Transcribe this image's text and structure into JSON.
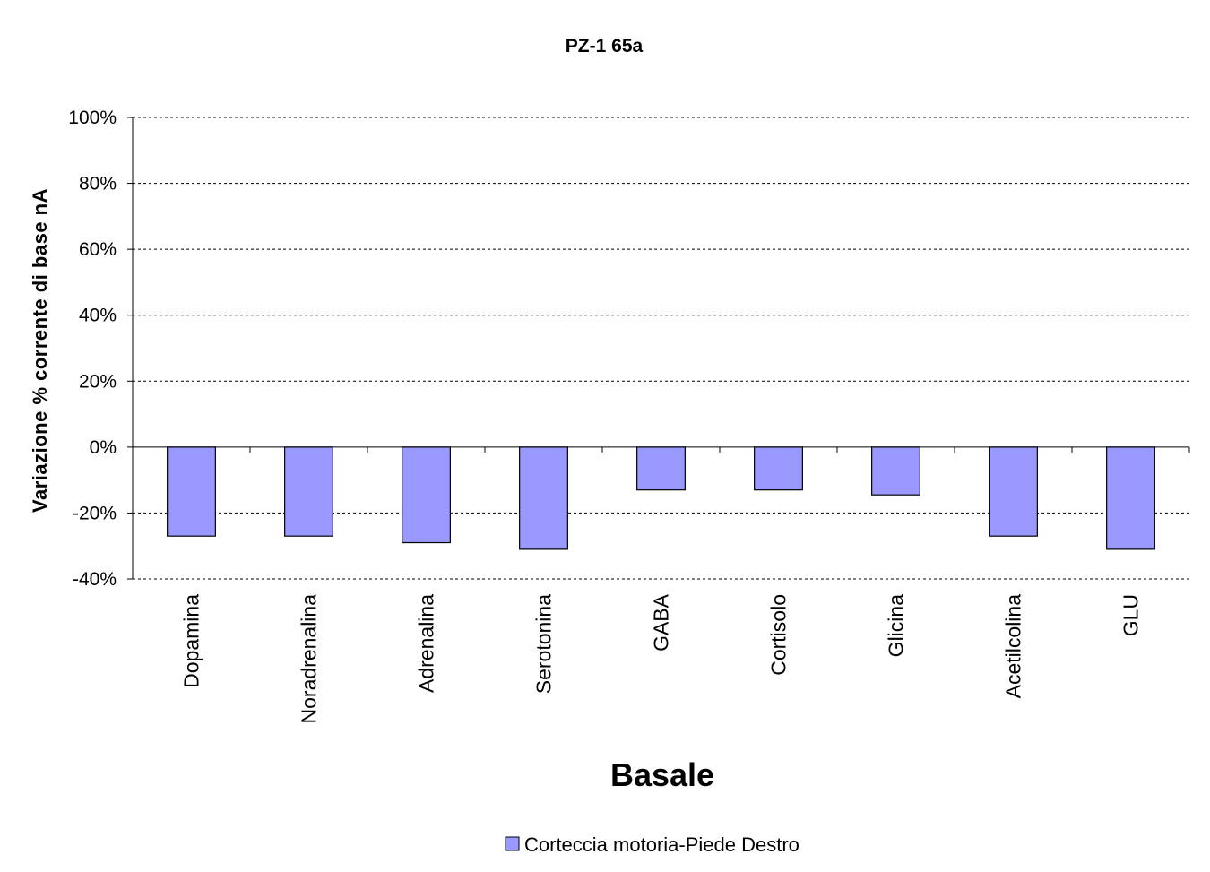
{
  "chart_data": {
    "type": "bar",
    "title": "PZ-1 65a",
    "xlabel": "Basale",
    "ylabel": "Variazione % corrente di base nA",
    "categories": [
      "Dopamina",
      "Noradrenalina",
      "Adrenalina",
      "Serotonina",
      "GABA",
      "Cortisolo",
      "Glicina",
      "Acetilcolina",
      "GLU"
    ],
    "series": [
      {
        "name": "Corteccia motoria-Piede Destro",
        "color": "#9999ff",
        "values": [
          -27,
          -27,
          -29,
          -31,
          -13,
          -13,
          -14.5,
          -27,
          -31
        ]
      }
    ],
    "ylim": [
      -40,
      100
    ],
    "yticks": [
      100,
      80,
      60,
      40,
      20,
      0,
      -20,
      -40
    ],
    "ytick_labels": [
      "100%",
      "80%",
      "60%",
      "40%",
      "20%",
      "0%",
      "-20%",
      "-40%"
    ],
    "grid": true,
    "legend": "bottom"
  }
}
